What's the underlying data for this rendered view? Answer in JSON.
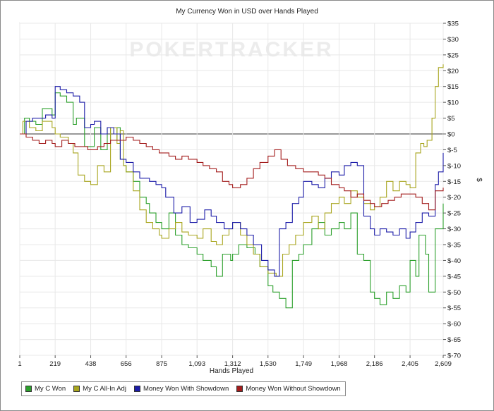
{
  "chart_data": {
    "type": "line",
    "title": "My Currency Won in USD over Hands Played",
    "watermark": "POKERTRACKER",
    "xlabel": "Hands Played",
    "ylabel": "$",
    "xlim": [
      1,
      2609
    ],
    "ylim": [
      -70,
      35
    ],
    "x_ticks": [
      1,
      219,
      438,
      656,
      875,
      1093,
      1312,
      1530,
      1749,
      1968,
      2186,
      2405,
      2609
    ],
    "x_tick_labels": [
      "1",
      "219",
      "438",
      "656",
      "875",
      "1,093",
      "1,312",
      "1,530",
      "1,749",
      "1,968",
      "2,186",
      "2,405",
      "2,609"
    ],
    "y_ticks": [
      35,
      30,
      25,
      20,
      15,
      10,
      5,
      0,
      -5,
      -10,
      -15,
      -20,
      -25,
      -30,
      -35,
      -40,
      -45,
      -50,
      -55,
      -60,
      -65,
      -70
    ],
    "y_tick_labels": [
      "$35",
      "$30",
      "$25",
      "$20",
      "$15",
      "$10",
      "$5",
      "$0",
      "$-5",
      "$-10",
      "$-15",
      "$-20",
      "$-25",
      "$-30",
      "$-35",
      "$-40",
      "$-45",
      "$-50",
      "$-55",
      "$-60",
      "$-65",
      "$-70"
    ],
    "grid": true,
    "legend_position": "bottom-left",
    "series": [
      {
        "name": "My C Won",
        "color": "#2ca02c",
        "x": [
          1,
          30,
          60,
          100,
          140,
          200,
          219,
          250,
          290,
          330,
          350,
          400,
          438,
          460,
          500,
          540,
          560,
          600,
          620,
          640,
          656,
          700,
          740,
          780,
          800,
          840,
          875,
          920,
          960,
          1000,
          1040,
          1093,
          1130,
          1180,
          1212,
          1250,
          1300,
          1312,
          1350,
          1400,
          1450,
          1480,
          1530,
          1560,
          1600,
          1640,
          1680,
          1720,
          1749,
          1800,
          1840,
          1880,
          1920,
          1968,
          2000,
          2040,
          2080,
          2120,
          2160,
          2186,
          2220,
          2260,
          2300,
          2340,
          2380,
          2405,
          2440,
          2460,
          2500,
          2520,
          2560,
          2609
        ],
        "y": [
          0,
          5,
          4,
          3,
          8,
          6,
          13,
          12,
          10,
          3,
          5,
          -4,
          -4,
          2,
          -5,
          2,
          -2,
          2,
          -8,
          -10,
          -12,
          -15,
          -20,
          -22,
          -25,
          -28,
          -30,
          -25,
          -32,
          -35,
          -36,
          -38,
          -40,
          -42,
          -45,
          -38,
          -40,
          -38,
          -35,
          -36,
          -38,
          -42,
          -48,
          -50,
          -52,
          -55,
          -40,
          -38,
          -35,
          -30,
          -28,
          -32,
          -30,
          -28,
          -30,
          -25,
          -38,
          -40,
          -50,
          -52,
          -54,
          -50,
          -52,
          -48,
          -50,
          -40,
          -45,
          -32,
          -38,
          -50,
          -30,
          -22
        ]
      },
      {
        "name": "My C All-In Adj",
        "color": "#a8a51e",
        "x": [
          1,
          20,
          60,
          100,
          140,
          200,
          219,
          250,
          300,
          330,
          360,
          400,
          438,
          480,
          520,
          560,
          600,
          620,
          640,
          656,
          700,
          740,
          780,
          820,
          860,
          875,
          920,
          960,
          1000,
          1040,
          1093,
          1130,
          1180,
          1212,
          1250,
          1290,
          1312,
          1360,
          1400,
          1440,
          1480,
          1530,
          1580,
          1620,
          1660,
          1700,
          1749,
          1800,
          1840,
          1880,
          1920,
          1968,
          2000,
          2040,
          2080,
          2120,
          2160,
          2186,
          2220,
          2260,
          2300,
          2340,
          2380,
          2405,
          2440,
          2470,
          2490,
          2510,
          2540,
          2560,
          2580,
          2609
        ],
        "y": [
          0,
          4,
          2,
          1,
          4,
          2,
          0,
          -1,
          -3,
          -6,
          -13,
          -15,
          -16,
          -10,
          -12,
          2,
          -3,
          1,
          -10,
          -12,
          -18,
          -24,
          -28,
          -30,
          -32,
          -33,
          -30,
          -28,
          -31,
          -32,
          -33,
          -30,
          -34,
          -35,
          -32,
          -30,
          -28,
          -32,
          -35,
          -38,
          -42,
          -44,
          -45,
          -38,
          -35,
          -32,
          -28,
          -26,
          -30,
          -25,
          -22,
          -20,
          -22,
          -18,
          -20,
          -22,
          -24,
          -23,
          -20,
          -15,
          -18,
          -15,
          -16,
          -17,
          -6,
          -3,
          -4,
          -2,
          5,
          15,
          21,
          22
        ]
      },
      {
        "name": "Money Won With Showdown",
        "color": "#1c1ca8",
        "x": [
          1,
          40,
          80,
          120,
          160,
          200,
          219,
          250,
          290,
          330,
          370,
          400,
          438,
          460,
          500,
          540,
          580,
          620,
          656,
          700,
          740,
          800,
          840,
          875,
          900,
          950,
          1000,
          1050,
          1093,
          1140,
          1180,
          1212,
          1260,
          1312,
          1360,
          1400,
          1440,
          1490,
          1530,
          1570,
          1600,
          1640,
          1680,
          1720,
          1749,
          1800,
          1840,
          1880,
          1920,
          1968,
          2000,
          2040,
          2080,
          2120,
          2160,
          2186,
          2220,
          2260,
          2300,
          2340,
          2380,
          2405,
          2440,
          2480,
          2520,
          2560,
          2580,
          2609
        ],
        "y": [
          0,
          4,
          5,
          5,
          6,
          5,
          15,
          14,
          13,
          12,
          10,
          2,
          3,
          4,
          0,
          2,
          0,
          -8,
          -9,
          -12,
          -14,
          -15,
          -16,
          -17,
          -20,
          -25,
          -23,
          -28,
          -27,
          -24,
          -26,
          -28,
          -30,
          -28,
          -30,
          -32,
          -35,
          -40,
          -43,
          -45,
          -30,
          -28,
          -22,
          -20,
          -15,
          -16,
          -17,
          -14,
          -12,
          -13,
          -10,
          -9,
          -10,
          -26,
          -30,
          -32,
          -30,
          -31,
          -32,
          -30,
          -33,
          -31,
          -28,
          -25,
          -26,
          -16,
          -12,
          -6
        ]
      },
      {
        "name": "Money Won Without Showdown",
        "color": "#a31c1c",
        "x": [
          1,
          40,
          80,
          120,
          160,
          200,
          219,
          260,
          300,
          340,
          380,
          420,
          438,
          480,
          520,
          560,
          600,
          656,
          700,
          740,
          780,
          820,
          860,
          875,
          920,
          960,
          1000,
          1040,
          1093,
          1130,
          1170,
          1212,
          1250,
          1290,
          1312,
          1360,
          1400,
          1440,
          1480,
          1530,
          1570,
          1610,
          1650,
          1700,
          1749,
          1800,
          1840,
          1880,
          1920,
          1968,
          2000,
          2040,
          2080,
          2120,
          2160,
          2186,
          2230,
          2270,
          2310,
          2350,
          2405,
          2440,
          2480,
          2520,
          2560,
          2609
        ],
        "y": [
          0,
          -1,
          -2,
          -3,
          -2,
          -3,
          -4,
          -2,
          -3,
          -4,
          -4,
          -5,
          -5,
          -4,
          -3,
          -2,
          -2,
          -1,
          -2,
          -3,
          -4,
          -5,
          -6,
          -6,
          -7,
          -8,
          -7,
          -8,
          -9,
          -10,
          -11,
          -12,
          -15,
          -16,
          -17,
          -16,
          -14,
          -11,
          -9,
          -7,
          -5,
          -8,
          -10,
          -11,
          -12,
          -12,
          -13,
          -14,
          -16,
          -17,
          -18,
          -20,
          -19,
          -21,
          -22,
          -23,
          -22,
          -21,
          -20,
          -19,
          -19,
          -20,
          -22,
          -24,
          -18,
          -17
        ]
      }
    ]
  }
}
